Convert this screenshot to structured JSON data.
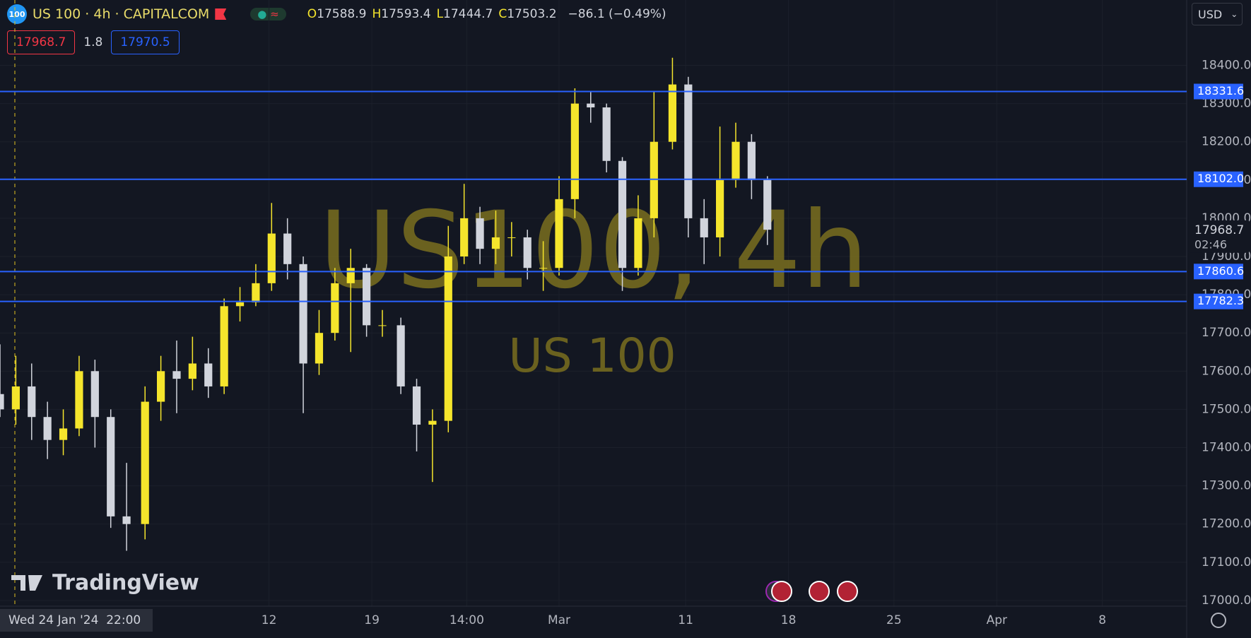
{
  "header": {
    "symbol_badge": "100",
    "title": "US 100 · 4h · CAPITALCOM",
    "ohlc": [
      {
        "key": "O",
        "value": "17588.9"
      },
      {
        "key": "H",
        "value": "17593.4"
      },
      {
        "key": "L",
        "value": "17444.7"
      },
      {
        "key": "C",
        "value": "17503.2"
      }
    ],
    "change": "−86.1 (−0.49%)"
  },
  "badges": {
    "sell": "17968.7",
    "spread": "1.8",
    "buy": "17970.5"
  },
  "currency": "USD",
  "watermark": {
    "title": "US100, 4h",
    "subtitle": "US 100"
  },
  "logo": "TradingView",
  "crosshair_label": "Wed 24 Jan '24  22:00",
  "chart_data": {
    "type": "candlestick",
    "x": [
      0,
      6,
      12,
      18,
      24,
      30,
      36,
      42,
      48,
      55,
      61,
      67,
      73,
      79,
      85,
      91,
      97,
      103,
      109,
      115,
      121,
      127,
      133,
      139,
      145,
      152,
      158,
      164,
      170,
      176,
      182,
      188,
      194,
      200,
      206,
      212,
      218,
      224,
      230,
      236,
      242,
      248,
      255,
      261,
      267,
      273,
      279,
      285,
      291
    ],
    "open": [
      17540,
      17500,
      17560,
      17480,
      17420,
      17450,
      17600,
      17480,
      17220,
      17200,
      17520,
      17600,
      17580,
      17620,
      17560,
      17770,
      17780,
      17830,
      17960,
      17880,
      17620,
      17700,
      17830,
      17870,
      17720,
      17720,
      17560,
      17460,
      17470,
      17900,
      18000,
      17920,
      17950,
      17950,
      17870,
      17870,
      18050,
      18300,
      18290,
      18150,
      17870,
      18000,
      18200,
      18350,
      18000,
      17950,
      18100,
      18200,
      18100
    ],
    "high": [
      17670,
      17640,
      17620,
      17520,
      17500,
      17640,
      17630,
      17500,
      17360,
      17560,
      17640,
      17680,
      17690,
      17660,
      17790,
      17820,
      17880,
      18040,
      18000,
      17900,
      17760,
      17870,
      17920,
      17880,
      17760,
      17740,
      17580,
      17500,
      17980,
      18090,
      18030,
      18020,
      17990,
      17970,
      17940,
      18110,
      18340,
      18330,
      18300,
      18160,
      18060,
      18330,
      18420,
      18370,
      18050,
      18240,
      18250,
      18220,
      18110
    ],
    "low": [
      17480,
      17460,
      17420,
      17370,
      17380,
      17430,
      17400,
      17190,
      17130,
      17160,
      17470,
      17490,
      17550,
      17530,
      17540,
      17730,
      17770,
      17810,
      17840,
      17490,
      17590,
      17680,
      17650,
      17690,
      17690,
      17540,
      17390,
      17310,
      17440,
      17880,
      17880,
      17880,
      17900,
      17840,
      17810,
      17850,
      18000,
      18250,
      18120,
      17810,
      17850,
      17950,
      18180,
      17950,
      17880,
      17900,
      18080,
      18050,
      17930
    ],
    "close": [
      17500,
      17560,
      17480,
      17420,
      17450,
      17600,
      17480,
      17220,
      17200,
      17520,
      17600,
      17580,
      17620,
      17560,
      17770,
      17780,
      17830,
      17960,
      17880,
      17620,
      17700,
      17830,
      17870,
      17720,
      17720,
      17560,
      17460,
      17470,
      17900,
      18000,
      17920,
      17950,
      17950,
      17870,
      17870,
      18050,
      18300,
      18290,
      18150,
      17870,
      18000,
      18200,
      18350,
      18000,
      17950,
      18100,
      18200,
      18100,
      17970
    ],
    "colors": {
      "up": "#f5e52c",
      "down": "#d1d4dc",
      "level": "#2962ff"
    },
    "xlim": [
      0,
      450
    ],
    "ylim": [
      16985,
      18571
    ],
    "xticks": [
      {
        "value": 102,
        "label": "12"
      },
      {
        "value": 141,
        "label": "19"
      },
      {
        "value": 177,
        "label": "14:00"
      },
      {
        "value": 212,
        "label": "Mar"
      },
      {
        "value": 260,
        "label": "11"
      },
      {
        "value": 299,
        "label": "18"
      },
      {
        "value": 339,
        "label": "25"
      },
      {
        "value": 378,
        "label": "Apr"
      },
      {
        "value": 418,
        "label": "8"
      }
    ],
    "yticks": [
      {
        "value": 17000,
        "label": "17000.0"
      },
      {
        "value": 17100,
        "label": "17100.0"
      },
      {
        "value": 17200,
        "label": "17200.0"
      },
      {
        "value": 17300,
        "label": "17300.0"
      },
      {
        "value": 17400,
        "label": "17400.0"
      },
      {
        "value": 17500,
        "label": "17500.0"
      },
      {
        "value": 17600,
        "label": "17600.0"
      },
      {
        "value": 17700,
        "label": "17700.0"
      },
      {
        "value": 17800,
        "label": "17800.0"
      },
      {
        "value": 17900,
        "label": "17900.0"
      },
      {
        "value": 18000,
        "label": "18000.0"
      },
      {
        "value": 18100,
        "label": "18100.0"
      },
      {
        "value": 18200,
        "label": "18200.0"
      },
      {
        "value": 18300,
        "label": "18300.0"
      },
      {
        "value": 18400,
        "label": "18400.0"
      }
    ],
    "levels": [
      18331.6,
      {
        "value": 18102,
        "label": "18102.0"
      },
      17860.6,
      17782.3
    ],
    "last_price": {
      "value": 17968.7,
      "countdown": "02:46"
    },
    "grid": true
  }
}
